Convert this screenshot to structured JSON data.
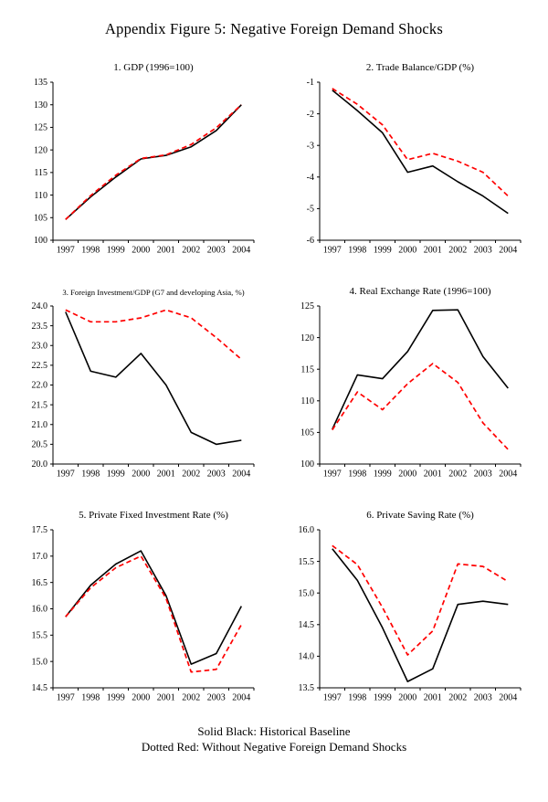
{
  "page_title": "Appendix Figure 5: Negative Foreign Demand Shocks",
  "footer": {
    "line1": "Solid Black: Historical Baseline",
    "line2": "Dotted Red: Without Negative Foreign Demand Shocks"
  },
  "colors": {
    "baseline": "#000000",
    "counterfactual": "#ff0000"
  },
  "chart_data": [
    {
      "type": "line",
      "title": "1. GDP (1996=100)",
      "categories": [
        "1997",
        "1998",
        "1999",
        "2000",
        "2001",
        "2002",
        "2003",
        "2004"
      ],
      "ymin": 100,
      "ymax": 135,
      "ystep": 5,
      "decimals": 0,
      "grid": false,
      "series": [
        {
          "name": "Historical Baseline",
          "color": "#000000",
          "style": "solid",
          "values": [
            104.6,
            109.6,
            114.0,
            118.0,
            118.8,
            120.7,
            124.3,
            130.0
          ]
        },
        {
          "name": "Without Negative Foreign Demand Shocks",
          "color": "#ff0000",
          "style": "dashed",
          "values": [
            104.6,
            109.9,
            114.4,
            118.1,
            118.9,
            121.2,
            124.9,
            130.0
          ]
        }
      ]
    },
    {
      "type": "line",
      "title": "2. Trade Balance/GDP (%)",
      "categories": [
        "1997",
        "1998",
        "1999",
        "2000",
        "2001",
        "2002",
        "2003",
        "2004"
      ],
      "ymin": -6,
      "ymax": -1,
      "ystep": 1,
      "decimals": 0,
      "grid": false,
      "series": [
        {
          "name": "Historical Baseline",
          "color": "#000000",
          "style": "solid",
          "values": [
            -1.25,
            -1.9,
            -2.6,
            -3.85,
            -3.65,
            -4.15,
            -4.6,
            -5.15
          ]
        },
        {
          "name": "Without Negative Foreign Demand Shocks",
          "color": "#ff0000",
          "style": "dashed",
          "values": [
            -1.2,
            -1.7,
            -2.35,
            -3.45,
            -3.25,
            -3.5,
            -3.85,
            -4.6
          ]
        }
      ]
    },
    {
      "type": "line",
      "title": "3. Foreign Investment/GDP (G7 and developing Asia, %)",
      "categories": [
        "1997",
        "1998",
        "1999",
        "2000",
        "2001",
        "2002",
        "2003",
        "2004"
      ],
      "ymin": 20.0,
      "ymax": 24.0,
      "ystep": 0.5,
      "decimals": 1,
      "grid": false,
      "series": [
        {
          "name": "Historical Baseline",
          "color": "#000000",
          "style": "solid",
          "values": [
            23.85,
            22.35,
            22.2,
            22.8,
            22.0,
            20.8,
            20.5,
            20.6
          ]
        },
        {
          "name": "Without Negative Foreign Demand Shocks",
          "color": "#ff0000",
          "style": "dashed",
          "values": [
            23.9,
            23.6,
            23.6,
            23.7,
            23.9,
            23.7,
            23.2,
            22.65
          ]
        }
      ]
    },
    {
      "type": "line",
      "title": "4. Real Exchange Rate (1996=100)",
      "categories": [
        "1997",
        "1998",
        "1999",
        "2000",
        "2001",
        "2002",
        "2003",
        "2004"
      ],
      "ymin": 100,
      "ymax": 125,
      "ystep": 5,
      "decimals": 0,
      "grid": false,
      "series": [
        {
          "name": "Historical Baseline",
          "color": "#000000",
          "style": "solid",
          "values": [
            105.5,
            114.1,
            113.5,
            117.8,
            124.3,
            124.4,
            117.0,
            112.0
          ]
        },
        {
          "name": "Without Negative Foreign Demand Shocks",
          "color": "#ff0000",
          "style": "dashed",
          "values": [
            105.4,
            111.4,
            108.6,
            112.7,
            115.9,
            112.9,
            106.5,
            102.3
          ]
        }
      ]
    },
    {
      "type": "line",
      "title": "5. Private Fixed Investment Rate (%)",
      "categories": [
        "1997",
        "1998",
        "1999",
        "2000",
        "2001",
        "2002",
        "2003",
        "2004"
      ],
      "ymin": 14.5,
      "ymax": 17.5,
      "ystep": 0.5,
      "decimals": 1,
      "grid": false,
      "series": [
        {
          "name": "Historical Baseline",
          "color": "#000000",
          "style": "solid",
          "values": [
            15.85,
            16.45,
            16.85,
            17.1,
            16.25,
            14.95,
            15.15,
            16.05
          ]
        },
        {
          "name": "Without Negative Foreign Demand Shocks",
          "color": "#ff0000",
          "style": "dashed",
          "values": [
            15.85,
            16.4,
            16.78,
            17.0,
            16.2,
            14.8,
            14.85,
            15.7
          ]
        }
      ]
    },
    {
      "type": "line",
      "title": "6. Private Saving Rate (%)",
      "categories": [
        "1997",
        "1998",
        "1999",
        "2000",
        "2001",
        "2002",
        "2003",
        "2004"
      ],
      "ymin": 13.5,
      "ymax": 16.0,
      "ystep": 0.5,
      "decimals": 1,
      "grid": false,
      "series": [
        {
          "name": "Historical Baseline",
          "color": "#000000",
          "style": "solid",
          "values": [
            15.7,
            15.2,
            14.45,
            13.6,
            13.8,
            14.82,
            14.87,
            14.82
          ]
        },
        {
          "name": "Without Negative Foreign Demand Shocks",
          "color": "#ff0000",
          "style": "dashed",
          "values": [
            15.75,
            15.45,
            14.77,
            14.02,
            14.4,
            15.46,
            15.42,
            15.18
          ]
        }
      ]
    }
  ]
}
